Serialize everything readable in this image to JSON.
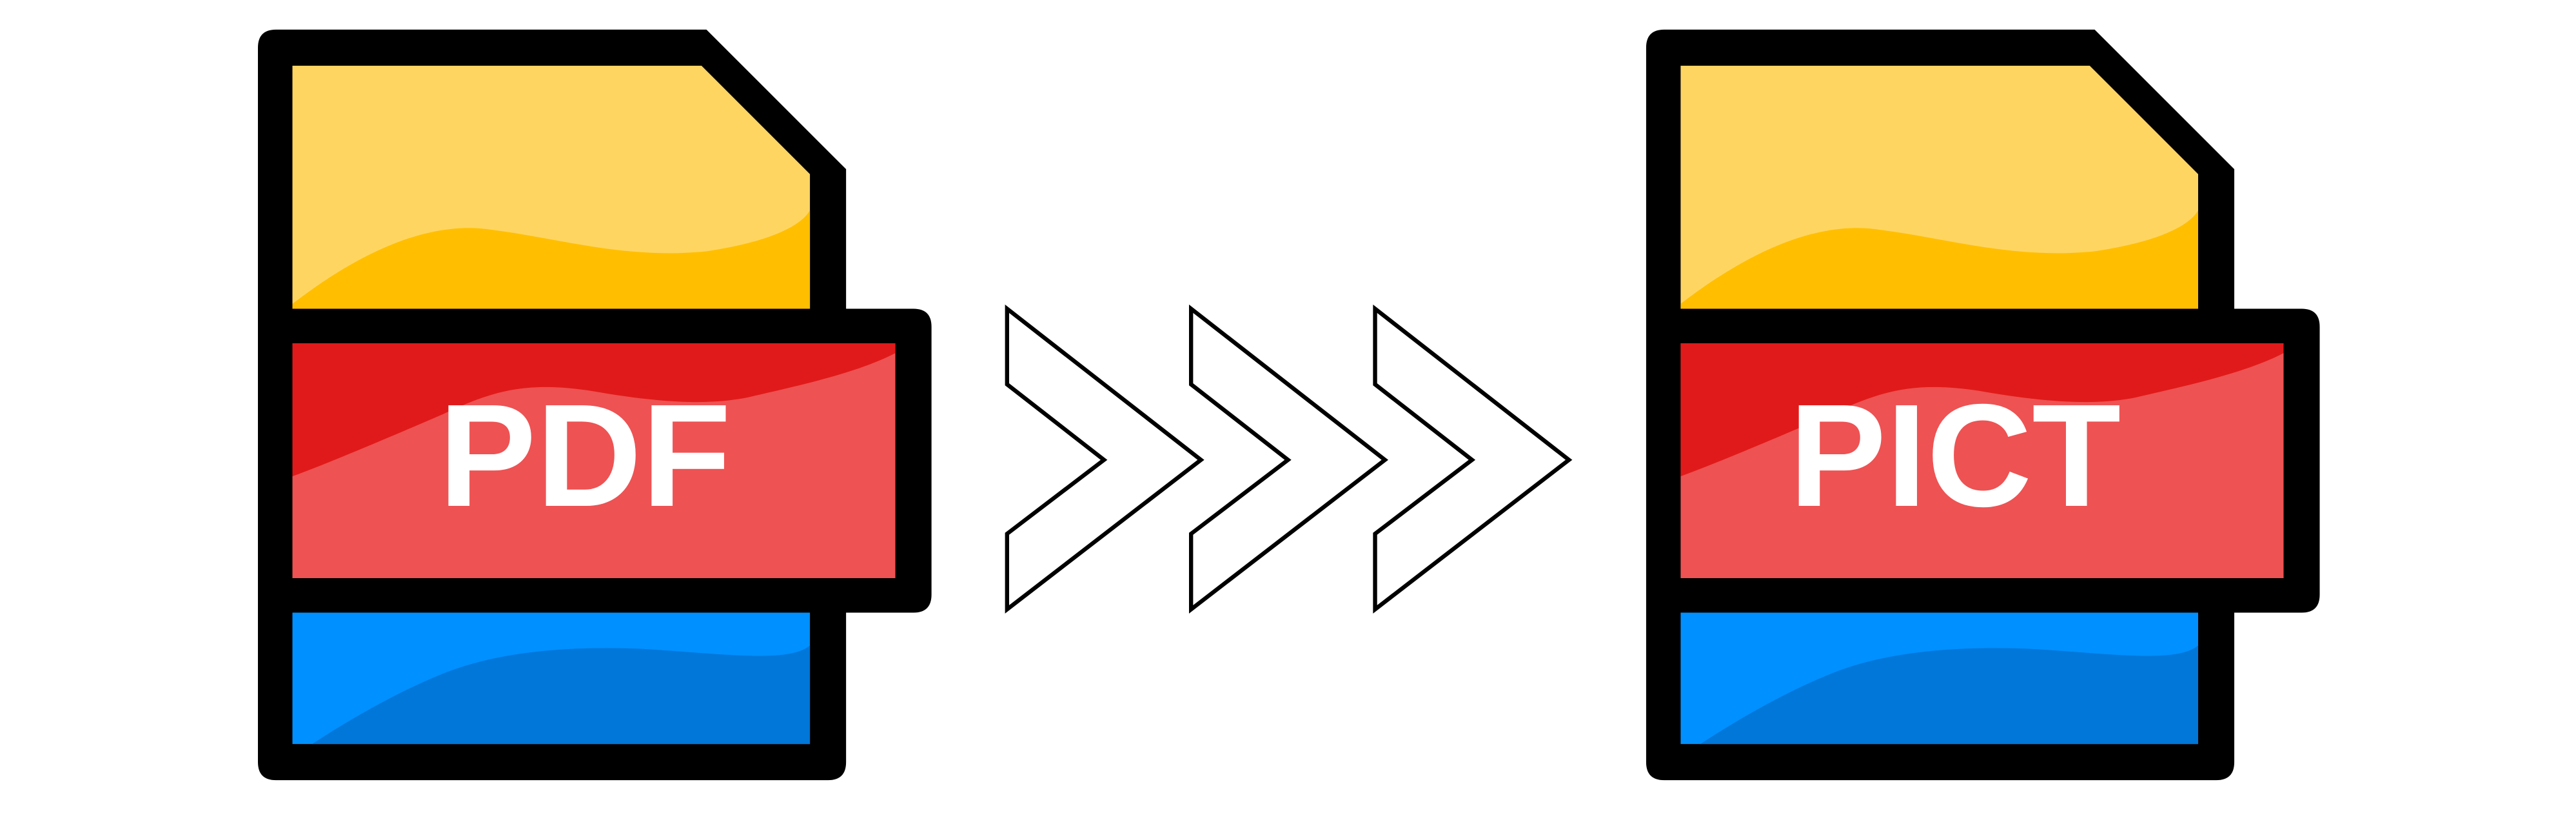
{
  "source_file": {
    "label": "PDF",
    "icon": "file-icon"
  },
  "target_file": {
    "label": "PICT",
    "icon": "file-icon"
  },
  "conversion_arrows": {
    "icon": "chevron-right-icon",
    "count": 3
  },
  "colors": {
    "outline": "#000000",
    "top_light": "#FFD561",
    "top_dark": "#FFBF00",
    "band_light": "#EE5253",
    "band_dark": "#E01A1A",
    "bottom_light": "#0090FF",
    "bottom_dark": "#0077D9",
    "label_text": "#FFFFFF"
  }
}
